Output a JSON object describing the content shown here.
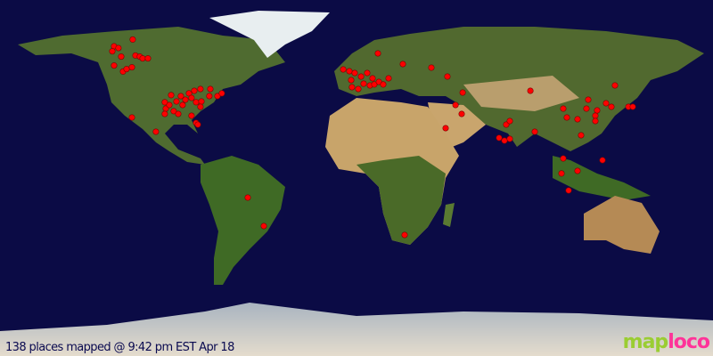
{
  "map": {
    "projection": "equirectangular",
    "colors": {
      "ocean": "#0b0b45",
      "land": "#4d6b2a",
      "desert": "#c8a870",
      "ice": "#e8ecee",
      "marker": "#ff0000"
    },
    "markers": [
      [
        70,
        -113
      ],
      [
        66.6,
        -122.4
      ],
      [
        65.7,
        -120.2
      ],
      [
        64.1,
        -123.3
      ],
      [
        61.4,
        -118.8
      ],
      [
        56.9,
        -122.4
      ],
      [
        53.8,
        -117.9
      ],
      [
        55.1,
        -116.1
      ],
      [
        56,
        -113.4
      ],
      [
        61.9,
        -111.6
      ],
      [
        61.4,
        -109.4
      ],
      [
        60.5,
        -108
      ],
      [
        60.5,
        -105.3
      ],
      [
        23.4,
        -101.3
      ],
      [
        38.3,
        -96.8
      ],
      [
        35.1,
        -96.3
      ],
      [
        36.9,
        -94.5
      ],
      [
        33.8,
        -92.3
      ],
      [
        41.9,
        -93.6
      ],
      [
        38.7,
        -90.9
      ],
      [
        41.4,
        -88.7
      ],
      [
        36.9,
        -87.8
      ],
      [
        39.6,
        -86.4
      ],
      [
        42.8,
        -84.6
      ],
      [
        40.5,
        -83.3
      ],
      [
        44.1,
        -81.9
      ],
      [
        38.3,
        -81
      ],
      [
        45,
        -78.8
      ],
      [
        38.7,
        -78.3
      ],
      [
        41.4,
        -74.3
      ],
      [
        45,
        -73.8
      ],
      [
        41.4,
        -70.2
      ],
      [
        42.8,
        -68
      ],
      [
        36,
        -78.8
      ],
      [
        31.5,
        -83.3
      ],
      [
        32.4,
        -90
      ],
      [
        32.4,
        -96.8
      ],
      [
        27.9,
        -81
      ],
      [
        27,
        -80.1
      ],
      [
        30.6,
        -113.4
      ],
      [
        63,
        10.8
      ],
      [
        57.6,
        23.4
      ],
      [
        55.8,
        37.8
      ],
      [
        51.3,
        45.9
      ],
      [
        54.9,
        -6.7
      ],
      [
        54,
        -3.6
      ],
      [
        53.1,
        -0.9
      ],
      [
        49.5,
        -2.7
      ],
      [
        51.3,
        2.3
      ],
      [
        53.1,
        5.4
      ],
      [
        50.4,
        8.1
      ],
      [
        47.7,
        3.6
      ],
      [
        46.8,
        6.8
      ],
      [
        47.3,
        9
      ],
      [
        48.6,
        11.3
      ],
      [
        47.3,
        13.5
      ],
      [
        50.4,
        16.2
      ],
      [
        45,
        0.9
      ],
      [
        45.9,
        -2.3
      ],
      [
        36.9,
        50
      ],
      [
        32.4,
        53.1
      ],
      [
        25.2,
        45
      ],
      [
        43.2,
        53.6
      ],
      [
        27,
        75.6
      ],
      [
        28.8,
        77.4
      ],
      [
        20.3,
        72
      ],
      [
        18.9,
        74.7
      ],
      [
        19.8,
        77.4
      ],
      [
        23.4,
        90
      ],
      [
        44.1,
        87.8
      ],
      [
        39.6,
        117
      ],
      [
        35.1,
        104.4
      ],
      [
        30.6,
        106.2
      ],
      [
        29.7,
        111.6
      ],
      [
        31.5,
        120.6
      ],
      [
        28.8,
        120.6
      ],
      [
        34.2,
        121.5
      ],
      [
        35.1,
        116.1
      ],
      [
        37.8,
        126
      ],
      [
        36,
        128.7
      ],
      [
        36,
        137.3
      ],
      [
        36,
        139.5
      ],
      [
        46.8,
        130.5
      ],
      [
        21.6,
        113.4
      ],
      [
        9.9,
        104.4
      ],
      [
        2.3,
        103.5
      ],
      [
        3.6,
        111.6
      ],
      [
        9,
        124.2
      ],
      [
        -6.3,
        107.1
      ],
      [
        -9.9,
        -54.9
      ],
      [
        -24.3,
        -46.8
      ],
      [
        -28.8,
        24.3
      ]
    ]
  },
  "caption": "138 places mapped @ 9:42 pm EST Apr 18",
  "logo": {
    "part1": "map",
    "part2": "loco"
  }
}
